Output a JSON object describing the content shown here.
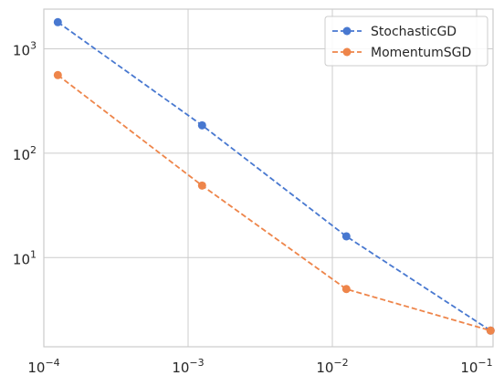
{
  "chart_data": {
    "type": "line",
    "title": "",
    "xlabel": "",
    "ylabel": "",
    "x_scale": "log",
    "y_scale": "log",
    "xlim": [
      0.0001,
      0.13
    ],
    "ylim": [
      1.4,
      2400
    ],
    "grid": true,
    "legend_position": "top-right",
    "x_ticks": [
      {
        "value": 0.0001,
        "base": "10",
        "exp": "−4"
      },
      {
        "value": 0.001,
        "base": "10",
        "exp": "−3"
      },
      {
        "value": 0.01,
        "base": "10",
        "exp": "−2"
      },
      {
        "value": 0.1,
        "base": "10",
        "exp": "−1"
      }
    ],
    "y_ticks": [
      {
        "value": 10,
        "base": "10",
        "exp": "1"
      },
      {
        "value": 100,
        "base": "10",
        "exp": "2"
      },
      {
        "value": 1000,
        "base": "10",
        "exp": "3"
      }
    ],
    "series": [
      {
        "name": "StochasticGD",
        "color": "#4878d0",
        "linestyle": "dashed",
        "marker": "circle",
        "x": [
          0.000125,
          0.00125,
          0.0125,
          0.125
        ],
        "y": [
          1800,
          185,
          16,
          2
        ]
      },
      {
        "name": "MomentumSGD",
        "color": "#ee854a",
        "linestyle": "dashed",
        "marker": "circle",
        "x": [
          0.000125,
          0.00125,
          0.0125,
          0.125
        ],
        "y": [
          560,
          49,
          5,
          2
        ]
      }
    ]
  }
}
